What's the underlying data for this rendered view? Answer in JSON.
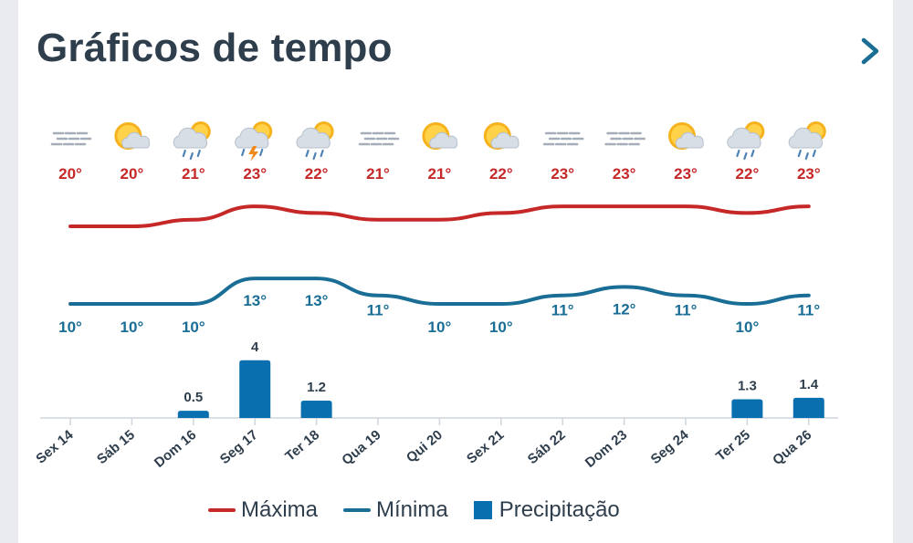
{
  "header": {
    "title": "Gráficos de tempo"
  },
  "legend": {
    "max_label": "Máxima",
    "min_label": "Mínima",
    "precip_label": "Precipitação"
  },
  "colors": {
    "max": "#c62828",
    "min": "#1a6e96",
    "precip": "#0a6fae",
    "title": "#2f3e4d"
  },
  "days": [
    {
      "label": "Sex 14",
      "icon": "fog-icon"
    },
    {
      "label": "Sáb 15",
      "icon": "partly-cloudy-icon"
    },
    {
      "label": "Dom 16",
      "icon": "rain-sun-icon"
    },
    {
      "label": "Seg 17",
      "icon": "thunderstorm-sun-icon"
    },
    {
      "label": "Ter 18",
      "icon": "rain-sun-icon"
    },
    {
      "label": "Qua 19",
      "icon": "fog-icon"
    },
    {
      "label": "Qui 20",
      "icon": "partly-cloudy-icon"
    },
    {
      "label": "Sex 21",
      "icon": "partly-cloudy-icon"
    },
    {
      "label": "Sáb 22",
      "icon": "fog-icon"
    },
    {
      "label": "Dom 23",
      "icon": "fog-icon"
    },
    {
      "label": "Seg 24",
      "icon": "partly-cloudy-icon"
    },
    {
      "label": "Ter 25",
      "icon": "rain-sun-icon"
    },
    {
      "label": "Qua 26",
      "icon": "rain-sun-icon"
    }
  ],
  "chart_data": {
    "type": "line",
    "categories": [
      "Sex 14",
      "Sáb 15",
      "Dom 16",
      "Seg 17",
      "Ter 18",
      "Qua 19",
      "Qui 20",
      "Sex 21",
      "Sáb 22",
      "Dom 23",
      "Seg 24",
      "Ter 25",
      "Qua 26"
    ],
    "series": [
      {
        "name": "Máxima",
        "type": "line",
        "unit": "°",
        "values": [
          20,
          20,
          21,
          23,
          22,
          21,
          21,
          22,
          23,
          23,
          23,
          22,
          23
        ]
      },
      {
        "name": "Mínima",
        "type": "line",
        "unit": "°",
        "values": [
          10,
          10,
          10,
          13,
          13,
          11,
          10,
          10,
          11,
          12,
          11,
          10,
          11
        ]
      },
      {
        "name": "Precipitação",
        "type": "bar",
        "values": [
          0,
          0,
          0.5,
          4,
          1.2,
          0,
          0,
          0,
          0,
          0,
          0,
          1.3,
          1.4
        ]
      }
    ],
    "labels": {
      "max": [
        "20°",
        "20°",
        "21°",
        "23°",
        "22°",
        "21°",
        "21°",
        "22°",
        "23°",
        "23°",
        "23°",
        "22°",
        "23°"
      ],
      "min": [
        "10°",
        "10°",
        "10°",
        "13°",
        "13°",
        "11°",
        "10°",
        "10°",
        "11°",
        "12°",
        "11°",
        "10°",
        "11°"
      ],
      "precip": [
        "",
        "",
        "0.5",
        "4",
        "1.2",
        "",
        "",
        "",
        "",
        "",
        "",
        "1.3",
        "1.4"
      ]
    },
    "legend_position": "bottom",
    "grid": false
  }
}
